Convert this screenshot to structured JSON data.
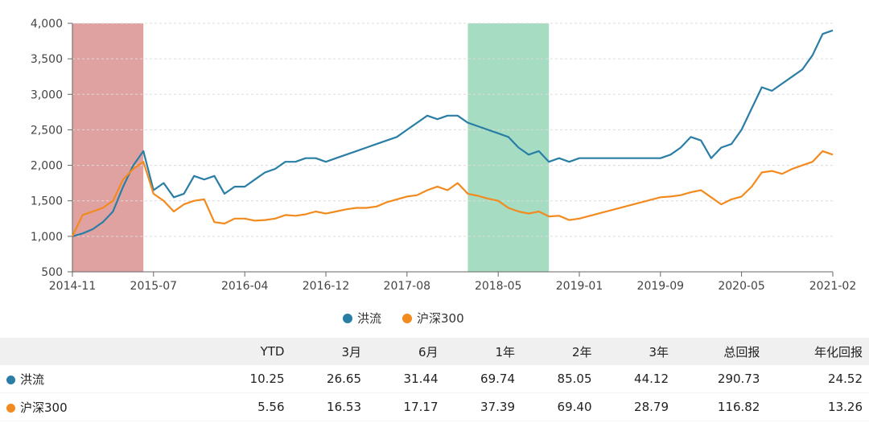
{
  "chart_data": {
    "type": "line",
    "x_ticks": [
      "2014-11",
      "2015-07",
      "2016-04",
      "2016-12",
      "2017-08",
      "2018-05",
      "2019-01",
      "2019-09",
      "2020-05",
      "2021-02"
    ],
    "xlim": [
      "2014-11",
      "2021-02"
    ],
    "ylim": [
      500,
      4000
    ],
    "y_ticks": [
      "500",
      "1,000",
      "1,500",
      "2,000",
      "2,500",
      "3,000",
      "3,500",
      "4,000"
    ],
    "grid": "horizontal-dashed",
    "legend_position": "bottom-center",
    "shaded_periods": [
      {
        "start": "2014-11",
        "end": "2015-06",
        "color": "#e0a1a1"
      },
      {
        "start": "2018-02",
        "end": "2018-10",
        "color": "#a6dcc2"
      }
    ],
    "series": [
      {
        "name": "洪流",
        "color": "#2a7ea6",
        "points": [
          [
            "2014-11",
            1000
          ],
          [
            "2014-12",
            1040
          ],
          [
            "2015-01",
            1100
          ],
          [
            "2015-02",
            1200
          ],
          [
            "2015-03",
            1350
          ],
          [
            "2015-04",
            1700
          ],
          [
            "2015-05",
            2000
          ],
          [
            "2015-06",
            2200
          ],
          [
            "2015-07",
            1650
          ],
          [
            "2015-08",
            1750
          ],
          [
            "2015-09",
            1550
          ],
          [
            "2015-10",
            1600
          ],
          [
            "2015-11",
            1850
          ],
          [
            "2015-12",
            1800
          ],
          [
            "2016-01",
            1850
          ],
          [
            "2016-02",
            1600
          ],
          [
            "2016-03",
            1700
          ],
          [
            "2016-04",
            1700
          ],
          [
            "2016-05",
            1800
          ],
          [
            "2016-06",
            1900
          ],
          [
            "2016-07",
            1950
          ],
          [
            "2016-08",
            2050
          ],
          [
            "2016-09",
            2050
          ],
          [
            "2016-10",
            2100
          ],
          [
            "2016-11",
            2100
          ],
          [
            "2016-12",
            2050
          ],
          [
            "2017-01",
            2100
          ],
          [
            "2017-02",
            2150
          ],
          [
            "2017-03",
            2200
          ],
          [
            "2017-04",
            2250
          ],
          [
            "2017-05",
            2300
          ],
          [
            "2017-06",
            2350
          ],
          [
            "2017-07",
            2400
          ],
          [
            "2017-08",
            2500
          ],
          [
            "2017-09",
            2600
          ],
          [
            "2017-10",
            2700
          ],
          [
            "2017-11",
            2650
          ],
          [
            "2017-12",
            2700
          ],
          [
            "2018-01",
            2700
          ],
          [
            "2018-02",
            2600
          ],
          [
            "2018-03",
            2550
          ],
          [
            "2018-04",
            2500
          ],
          [
            "2018-05",
            2450
          ],
          [
            "2018-06",
            2400
          ],
          [
            "2018-07",
            2250
          ],
          [
            "2018-08",
            2150
          ],
          [
            "2018-09",
            2200
          ],
          [
            "2018-10",
            2050
          ],
          [
            "2018-11",
            2100
          ],
          [
            "2018-12",
            2050
          ],
          [
            "2019-01",
            2100
          ],
          [
            "2019-09",
            2100
          ],
          [
            "2019-10",
            2150
          ],
          [
            "2019-11",
            2250
          ],
          [
            "2019-12",
            2400
          ],
          [
            "2020-01",
            2350
          ],
          [
            "2020-02",
            2100
          ],
          [
            "2020-03",
            2250
          ],
          [
            "2020-04",
            2300
          ],
          [
            "2020-05",
            2500
          ],
          [
            "2020-06",
            2800
          ],
          [
            "2020-07",
            3100
          ],
          [
            "2020-08",
            3050
          ],
          [
            "2020-09",
            3150
          ],
          [
            "2020-10",
            3250
          ],
          [
            "2020-11",
            3350
          ],
          [
            "2020-12",
            3550
          ],
          [
            "2021-01",
            3850
          ],
          [
            "2021-02",
            3900
          ]
        ]
      },
      {
        "name": "沪深300",
        "color": "#f28a1e",
        "points": [
          [
            "2014-11",
            1000
          ],
          [
            "2014-12",
            1300
          ],
          [
            "2015-01",
            1350
          ],
          [
            "2015-02",
            1400
          ],
          [
            "2015-03",
            1500
          ],
          [
            "2015-04",
            1800
          ],
          [
            "2015-05",
            1950
          ],
          [
            "2015-06",
            2050
          ],
          [
            "2015-07",
            1600
          ],
          [
            "2015-08",
            1500
          ],
          [
            "2015-09",
            1350
          ],
          [
            "2015-10",
            1450
          ],
          [
            "2015-11",
            1500
          ],
          [
            "2015-12",
            1520
          ],
          [
            "2016-01",
            1200
          ],
          [
            "2016-02",
            1180
          ],
          [
            "2016-03",
            1250
          ],
          [
            "2016-04",
            1250
          ],
          [
            "2016-05",
            1220
          ],
          [
            "2016-06",
            1230
          ],
          [
            "2016-07",
            1250
          ],
          [
            "2016-08",
            1300
          ],
          [
            "2016-09",
            1290
          ],
          [
            "2016-10",
            1310
          ],
          [
            "2016-11",
            1350
          ],
          [
            "2016-12",
            1320
          ],
          [
            "2017-01",
            1350
          ],
          [
            "2017-02",
            1380
          ],
          [
            "2017-03",
            1400
          ],
          [
            "2017-04",
            1400
          ],
          [
            "2017-05",
            1420
          ],
          [
            "2017-06",
            1480
          ],
          [
            "2017-07",
            1520
          ],
          [
            "2017-08",
            1560
          ],
          [
            "2017-09",
            1580
          ],
          [
            "2017-10",
            1650
          ],
          [
            "2017-11",
            1700
          ],
          [
            "2017-12",
            1650
          ],
          [
            "2018-01",
            1750
          ],
          [
            "2018-02",
            1600
          ],
          [
            "2018-03",
            1570
          ],
          [
            "2018-04",
            1530
          ],
          [
            "2018-05",
            1500
          ],
          [
            "2018-06",
            1400
          ],
          [
            "2018-07",
            1350
          ],
          [
            "2018-08",
            1320
          ],
          [
            "2018-09",
            1350
          ],
          [
            "2018-10",
            1280
          ],
          [
            "2018-11",
            1290
          ],
          [
            "2018-12",
            1230
          ],
          [
            "2019-01",
            1250
          ],
          [
            "2019-09",
            1550
          ],
          [
            "2019-10",
            1560
          ],
          [
            "2019-11",
            1580
          ],
          [
            "2019-12",
            1620
          ],
          [
            "2020-01",
            1650
          ],
          [
            "2020-02",
            1550
          ],
          [
            "2020-03",
            1450
          ],
          [
            "2020-04",
            1520
          ],
          [
            "2020-05",
            1560
          ],
          [
            "2020-06",
            1700
          ],
          [
            "2020-07",
            1900
          ],
          [
            "2020-08",
            1920
          ],
          [
            "2020-09",
            1880
          ],
          [
            "2020-10",
            1950
          ],
          [
            "2020-11",
            2000
          ],
          [
            "2020-12",
            2050
          ],
          [
            "2021-01",
            2200
          ],
          [
            "2021-02",
            2150
          ]
        ]
      }
    ]
  },
  "table": {
    "headers": [
      "",
      "YTD",
      "3月",
      "6月",
      "1年",
      "2年",
      "3年",
      "总回报",
      "年化回报"
    ],
    "rows": [
      {
        "name": "洪流",
        "color": "#2a7ea6",
        "values": [
          "10.25",
          "26.65",
          "31.44",
          "69.74",
          "85.05",
          "44.12",
          "290.73",
          "24.52"
        ]
      },
      {
        "name": "沪深300",
        "color": "#f28a1e",
        "values": [
          "5.56",
          "16.53",
          "17.17",
          "37.39",
          "69.40",
          "28.79",
          "116.82",
          "13.26"
        ]
      }
    ]
  }
}
